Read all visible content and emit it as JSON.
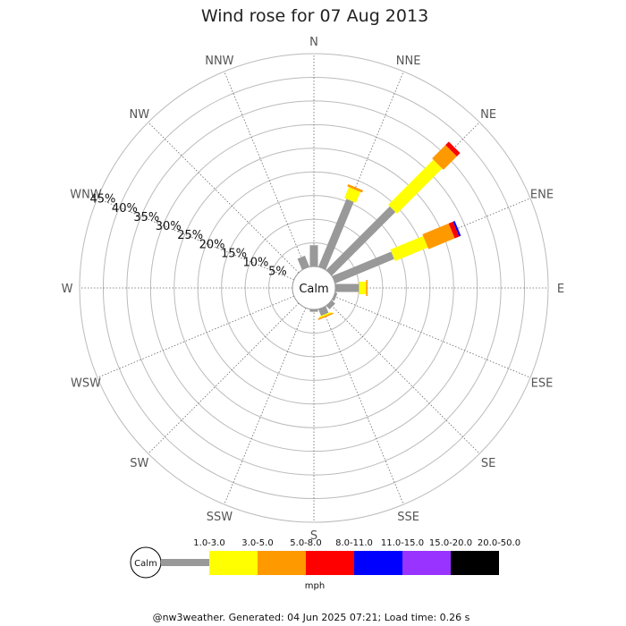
{
  "chart_data": {
    "type": "wind-rose",
    "title": "Wind rose for 07 Aug 2013",
    "directions": [
      "N",
      "NNE",
      "NE",
      "ENE",
      "E",
      "ESE",
      "SE",
      "SSE",
      "S",
      "SSW",
      "SW",
      "WSW",
      "W",
      "WNW",
      "NW",
      "NNW"
    ],
    "ring_labels": [
      "5%",
      "10%",
      "15%",
      "20%",
      "25%",
      "30%",
      "35%",
      "40%",
      "45%"
    ],
    "r_max": 45,
    "calm_label": "Calm",
    "unit": "mph",
    "speed_bins": [
      {
        "label": "1.0-3.0",
        "color": "#999999"
      },
      {
        "label": "3.0-5.0",
        "color": "#ffff00"
      },
      {
        "label": "5.0-8.0",
        "color": "#ff9900"
      },
      {
        "label": "8.0-11.0",
        "color": "#ff0000"
      },
      {
        "label": "11.0-15.0",
        "color": "#0000ff"
      },
      {
        "label": "15.0-20.0",
        "color": "#9933ff"
      },
      {
        "label": "20.0-50.0",
        "color": "#000000"
      }
    ],
    "series": [
      {
        "direction": "N",
        "values": [
          4.5,
          0,
          0,
          0,
          0,
          0,
          0
        ]
      },
      {
        "direction": "NNE",
        "values": [
          15.5,
          2.5,
          0.5,
          0,
          0,
          0,
          0
        ]
      },
      {
        "direction": "NE",
        "values": [
          19,
          13.5,
          4,
          1,
          0,
          0,
          0
        ]
      },
      {
        "direction": "ENE",
        "values": [
          13.5,
          7.5,
          6,
          1,
          0.4,
          0,
          0
        ]
      },
      {
        "direction": "E",
        "values": [
          5,
          1.5,
          0.3,
          0,
          0,
          0,
          0
        ]
      },
      {
        "direction": "ESE",
        "values": [
          0.5,
          0,
          0,
          0,
          0,
          0,
          0
        ]
      },
      {
        "direction": "SE",
        "values": [
          1,
          0,
          0,
          0,
          0,
          0,
          0
        ]
      },
      {
        "direction": "SSE",
        "values": [
          1.5,
          0.3,
          0.3,
          0,
          0,
          0,
          0
        ]
      },
      {
        "direction": "S",
        "values": [
          0.5,
          0,
          0,
          0,
          0,
          0,
          0
        ]
      },
      {
        "direction": "SSW",
        "values": [
          0,
          0,
          0,
          0,
          0,
          0,
          0
        ]
      },
      {
        "direction": "SW",
        "values": [
          0,
          0,
          0,
          0,
          0,
          0,
          0
        ]
      },
      {
        "direction": "WSW",
        "values": [
          0,
          0,
          0,
          0,
          0,
          0,
          0
        ]
      },
      {
        "direction": "W",
        "values": [
          0,
          0,
          0,
          0,
          0,
          0,
          0
        ]
      },
      {
        "direction": "WNW",
        "values": [
          0,
          0,
          0,
          0,
          0,
          0,
          0
        ]
      },
      {
        "direction": "NW",
        "values": [
          0,
          0,
          0,
          0,
          0,
          0,
          0
        ]
      },
      {
        "direction": "NNW",
        "values": [
          2.5,
          0,
          0,
          0,
          0,
          0,
          0
        ]
      }
    ]
  },
  "footer": "@nw3weather. Generated: 04 Jun 2025 07:21; Load time: 0.26 s"
}
